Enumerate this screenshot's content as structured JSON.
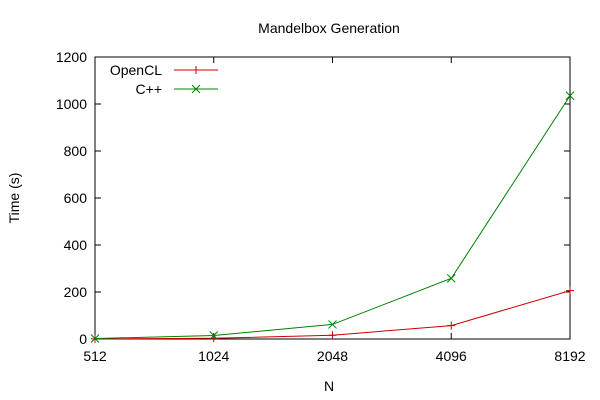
{
  "chart_data": {
    "type": "line",
    "title": "Mandelbox Generation",
    "xlabel": "N",
    "ylabel": "Time (s)",
    "x": [
      512,
      1024,
      2048,
      4096,
      8192
    ],
    "x_tick_labels": [
      "512",
      "1024",
      "2048",
      "4096",
      "8192"
    ],
    "x_scale": "log2",
    "ylim": [
      0,
      1200
    ],
    "y_ticks": [
      0,
      200,
      400,
      600,
      800,
      1000,
      1200
    ],
    "y_tick_labels": [
      "0",
      "200",
      "400",
      "600",
      "800",
      "1000",
      "1200"
    ],
    "grid": false,
    "legend_position": "top-left",
    "series": [
      {
        "name": "OpenCL",
        "color": "#cc0000",
        "marker": "plus",
        "values": [
          0.5,
          3,
          16,
          57,
          206
        ]
      },
      {
        "name": "C++",
        "color": "#008000",
        "marker": "cross",
        "values": [
          2,
          15,
          62,
          258,
          1035
        ]
      }
    ]
  }
}
